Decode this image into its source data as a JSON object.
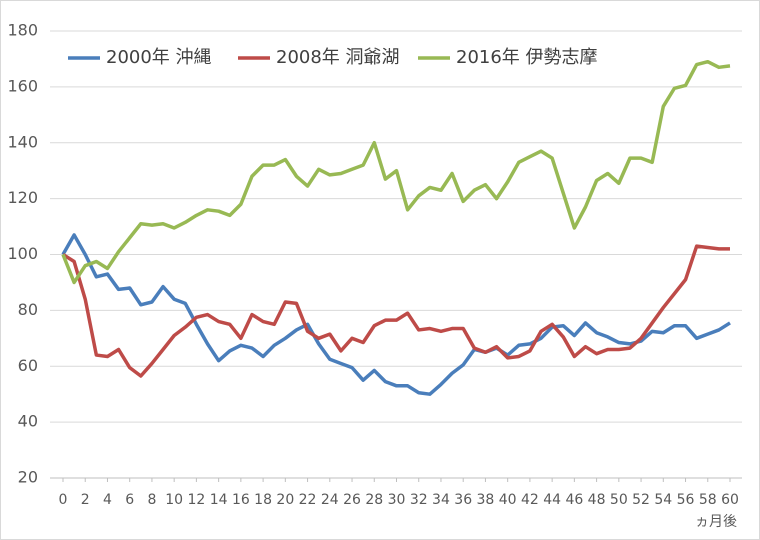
{
  "chart_data": {
    "type": "line",
    "x_label": "ヵ月後",
    "x": [
      0,
      1,
      2,
      3,
      4,
      5,
      6,
      7,
      8,
      9,
      10,
      11,
      12,
      13,
      14,
      15,
      16,
      17,
      18,
      19,
      20,
      21,
      22,
      23,
      24,
      25,
      26,
      27,
      28,
      29,
      30,
      31,
      32,
      33,
      34,
      35,
      36,
      37,
      38,
      39,
      40,
      41,
      42,
      43,
      44,
      45,
      46,
      47,
      48,
      49,
      50,
      51,
      52,
      53,
      54,
      55,
      56,
      57,
      58,
      59,
      60
    ],
    "xlim": [
      0,
      60
    ],
    "xticks": [
      0,
      2,
      4,
      6,
      8,
      10,
      12,
      14,
      16,
      18,
      20,
      22,
      24,
      26,
      28,
      30,
      32,
      34,
      36,
      38,
      40,
      42,
      44,
      46,
      48,
      50,
      52,
      54,
      56,
      58,
      60
    ],
    "ylim": [
      20,
      180
    ],
    "yticks": [
      20,
      40,
      60,
      80,
      100,
      120,
      140,
      160,
      180
    ],
    "grid": true,
    "legend": "top",
    "series": [
      {
        "name": "2000年 沖縄",
        "color": "#4a7ebb",
        "values": [
          100,
          107,
          100,
          92,
          93,
          87.5,
          88,
          82,
          83,
          88.5,
          84,
          82.5,
          75,
          68,
          62,
          65.5,
          67.5,
          66.5,
          63.5,
          67.5,
          70,
          73,
          75,
          68,
          62.5,
          61,
          59.5,
          55,
          58.5,
          54.5,
          53,
          53,
          50.5,
          50,
          53.5,
          57.5,
          60.5,
          66,
          65,
          66.5,
          64,
          67.5,
          68,
          70,
          74,
          74.5,
          71,
          75.5,
          72,
          70.5,
          68.5,
          68,
          69,
          72.5,
          72,
          74.5,
          74.5,
          70,
          71.5,
          73,
          75.5
        ]
      },
      {
        "name": "2008年 洞爺湖",
        "color": "#be4b48",
        "values": [
          100,
          97.5,
          84,
          64,
          63.5,
          66,
          59.5,
          56.5,
          61,
          66,
          71,
          74,
          77.5,
          78.5,
          76,
          75,
          70,
          78.5,
          76,
          75,
          83,
          82.5,
          72.5,
          70,
          71.5,
          65.5,
          70,
          68.5,
          74.5,
          76.5,
          76.5,
          79,
          73,
          73.5,
          72.5,
          73.5,
          73.5,
          66.5,
          65,
          67,
          63,
          63.5,
          65.5,
          72.5,
          75,
          70.5,
          63.5,
          67,
          64.5,
          66,
          66,
          66.5,
          70,
          75.5,
          81,
          86,
          91,
          103,
          102.5,
          102,
          102
        ]
      },
      {
        "name": "2016年  伊勢志摩",
        "color": "#98b954",
        "values": [
          100,
          90,
          96,
          97.5,
          95,
          101,
          106,
          111,
          110.5,
          111,
          109.5,
          111.5,
          114,
          116,
          115.5,
          114,
          118,
          128,
          132,
          132,
          134,
          128,
          124.5,
          130.5,
          128.5,
          129,
          130.5,
          132,
          140,
          127,
          130,
          116,
          121,
          124,
          123,
          129,
          119,
          123,
          125,
          120,
          126,
          133,
          135,
          137,
          134.5,
          122,
          109.5,
          117,
          126.5,
          129,
          125.5,
          134.5,
          134.5,
          133,
          153,
          159.5,
          160.5,
          168,
          169,
          167,
          167.5
        ]
      }
    ]
  }
}
